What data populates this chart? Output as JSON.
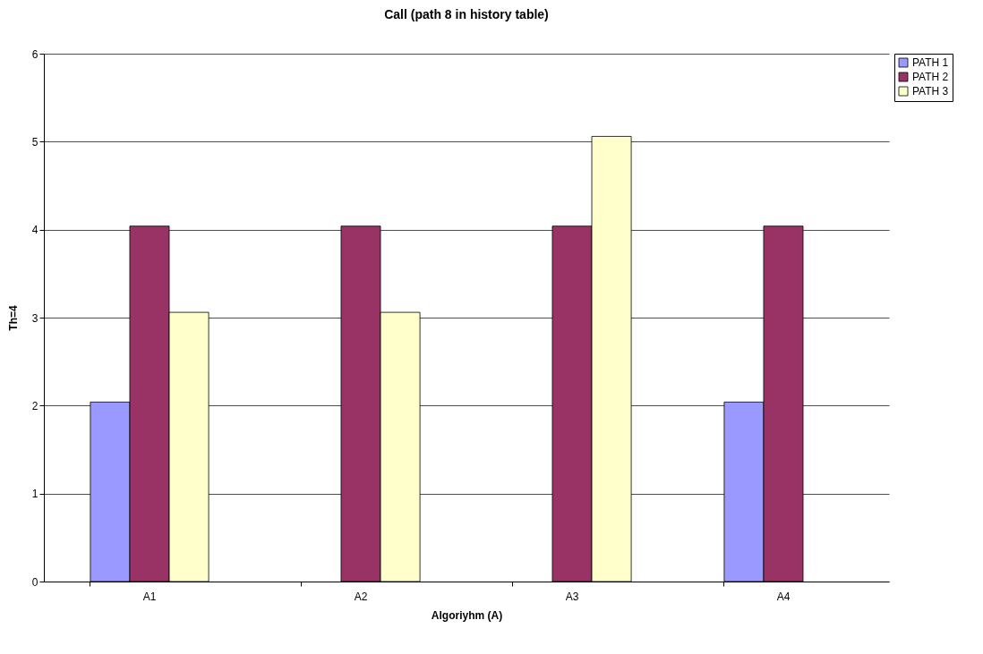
{
  "chart_data": {
    "type": "bar",
    "title": "Call (path 8 in history table)",
    "xlabel": "Algoriyhm (A)",
    "ylabel": "Th=4",
    "categories": [
      "A1",
      "A2",
      "A3",
      "A4"
    ],
    "series": [
      {
        "name": "PATH 1",
        "color": "#9999ff",
        "values": [
          2.04,
          null,
          null,
          2.04
        ]
      },
      {
        "name": "PATH 2",
        "color": "#993366",
        "values": [
          4.04,
          4.04,
          4.04,
          4.04
        ]
      },
      {
        "name": "PATH 3",
        "color": "#ffffcc",
        "values": [
          3.06,
          3.06,
          5.06,
          null
        ]
      }
    ],
    "ylim": [
      0,
      6
    ],
    "yticks": [
      0,
      1,
      2,
      3,
      4,
      5,
      6
    ],
    "grid": "y",
    "legend": "right"
  }
}
